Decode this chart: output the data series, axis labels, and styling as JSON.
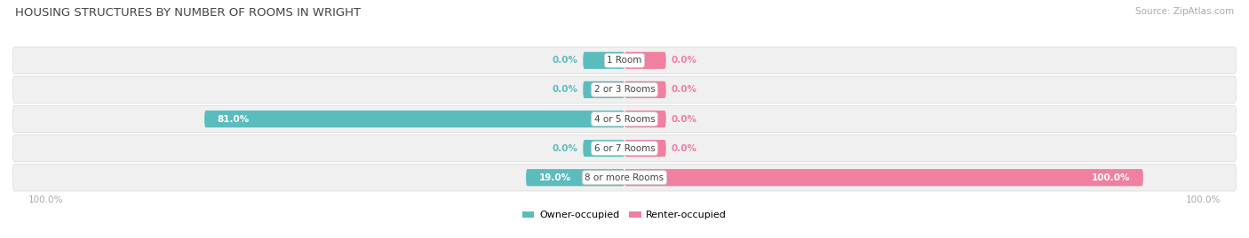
{
  "title": "HOUSING STRUCTURES BY NUMBER OF ROOMS IN WRIGHT",
  "source": "Source: ZipAtlas.com",
  "categories": [
    "1 Room",
    "2 or 3 Rooms",
    "4 or 5 Rooms",
    "6 or 7 Rooms",
    "8 or more Rooms"
  ],
  "owner_values": [
    0.0,
    0.0,
    81.0,
    0.0,
    19.0
  ],
  "renter_values": [
    0.0,
    0.0,
    0.0,
    0.0,
    100.0
  ],
  "owner_color": "#5bbcbe",
  "renter_color": "#f07fa0",
  "row_bg_color": "#f0f0f0",
  "title_color": "#444444",
  "source_color": "#aaaaaa",
  "center_label_color": "#444444",
  "owner_label_color": "#5bbcbe",
  "renter_label_color": "#f07fa0",
  "axis_label_color": "#aaaaaa",
  "max_value": 100.0,
  "figsize": [
    14.06,
    2.69
  ],
  "dpi": 100,
  "bar_height": 0.58,
  "small_bar_width": 8.0,
  "bottom_axis_label": "100.0%"
}
